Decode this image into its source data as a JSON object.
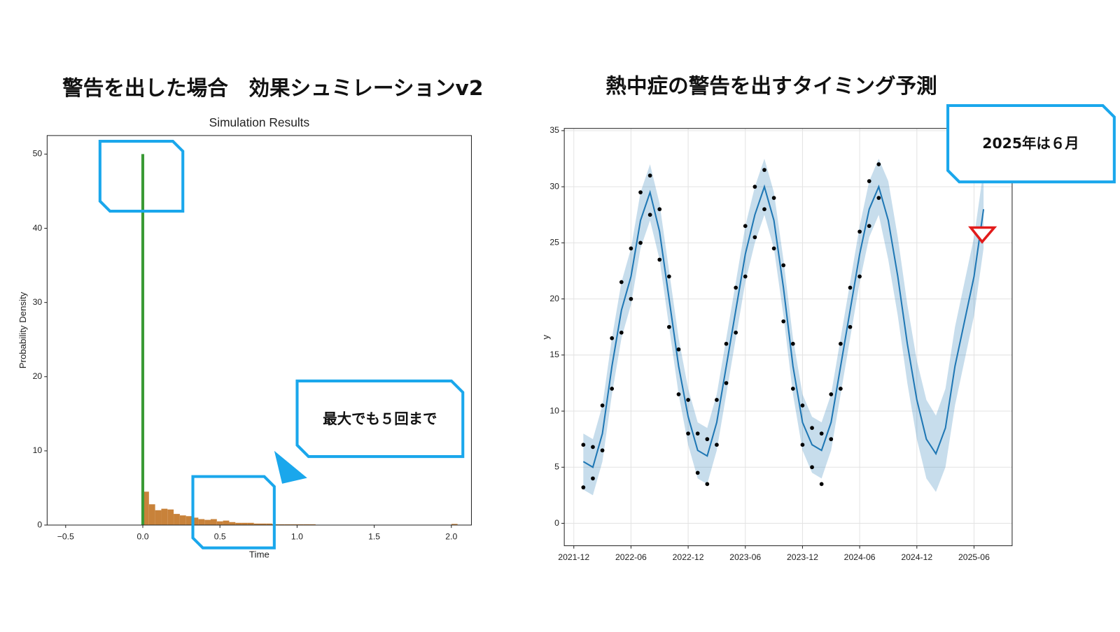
{
  "slide": {
    "titles": [
      "警告を出した場合　効果シュミレーションv2",
      "熱中症の警告を出すタイミング予測"
    ],
    "callouts": [
      "最大でも５回まで",
      "2025年は６月"
    ]
  },
  "chart_data": [
    {
      "type": "histogram",
      "title": "Simulation Results",
      "x_label": "Time",
      "y_label": "Probability Density",
      "bins": [
        0,
        0.04,
        0.08,
        0.12,
        0.16,
        0.2,
        0.24,
        0.28,
        0.32,
        0.36,
        0.4,
        0.44,
        0.48,
        0.52,
        0.56,
        0.6,
        0.64,
        0.68,
        0.72,
        0.76,
        0.8,
        0.84,
        0.88,
        0.92,
        0.96,
        1,
        1.04,
        1.08,
        1.12,
        1.16,
        1.2,
        1.24,
        1.28,
        1.32,
        1.36,
        1.4,
        1.44,
        1.48,
        1.52,
        1.56,
        1.6,
        1.64,
        1.68,
        1.72,
        1.76,
        1.8,
        1.84,
        1.88,
        1.92,
        1.96,
        2,
        2.04
      ],
      "values": [
        4.5,
        2.8,
        2.0,
        2.2,
        2.1,
        1.5,
        1.3,
        1.2,
        1.0,
        0.8,
        0.7,
        0.8,
        0.5,
        0.6,
        0.4,
        0.3,
        0.3,
        0.3,
        0.2,
        0.2,
        0.2,
        0.1,
        0.1,
        0.1,
        0.1,
        0.1,
        0.1,
        0.1,
        0,
        0,
        0,
        0,
        0,
        0,
        0,
        0,
        0,
        0,
        0,
        0,
        0,
        0,
        0,
        0,
        0,
        0,
        0,
        0,
        0,
        0,
        0.15
      ],
      "color": "#c8823a",
      "marker_line": {
        "x": 0,
        "y": 50,
        "color": "#3a9a35"
      },
      "xlim": [
        -0.62,
        2.13
      ],
      "ylim": [
        0,
        52.5
      ],
      "xticks": [
        {
          "value": -0.5,
          "label": "−0.5"
        },
        {
          "value": 0,
          "label": "0.0"
        },
        0.5,
        {
          "value": 1,
          "label": "1.0"
        },
        1.5,
        {
          "value": 2,
          "label": "2.0"
        }
      ],
      "yticks": [
        0,
        10,
        20,
        30,
        40,
        50
      ],
      "grid": false
    },
    {
      "type": "forecast",
      "y_label": "y",
      "x": [
        "2022-01",
        "2022-02",
        "2022-03",
        "2022-04",
        "2022-05",
        "2022-06",
        "2022-07",
        "2022-08",
        "2022-09",
        "2022-10",
        "2022-11",
        "2022-12",
        "2023-01",
        "2023-02",
        "2023-03",
        "2023-04",
        "2023-05",
        "2023-06",
        "2023-07",
        "2023-08",
        "2023-09",
        "2023-10",
        "2023-11",
        "2023-12",
        "2024-01",
        "2024-02",
        "2024-03",
        "2024-04",
        "2024-05",
        "2024-06",
        "2024-07",
        "2024-08",
        "2024-09",
        "2024-10",
        "2024-11",
        "2024-12",
        "2025-01",
        "2025-02",
        "2025-03",
        "2025-04",
        "2025-05",
        "2025-06",
        "2025-07"
      ],
      "values": [
        5.5,
        5.0,
        8,
        14,
        19,
        22,
        27,
        29.5,
        26,
        20,
        14,
        9.5,
        6.5,
        6.0,
        9,
        14,
        19,
        24,
        27.5,
        30,
        27,
        21,
        14,
        9,
        7,
        6.5,
        9,
        14,
        19,
        24,
        28,
        30,
        27,
        22,
        16,
        11,
        7.5,
        6.2,
        8.5,
        14,
        18,
        22,
        28
      ],
      "lower": [
        3,
        2.5,
        5.5,
        11.5,
        16.5,
        19.5,
        24.5,
        27,
        23.5,
        17.5,
        11.5,
        7,
        4,
        3.5,
        6.5,
        11.5,
        16.5,
        21.5,
        25,
        27.5,
        24.5,
        18.5,
        11.5,
        6.5,
        4.5,
        4,
        6.5,
        11.5,
        16.5,
        21.5,
        25.5,
        27.5,
        23.5,
        18.5,
        12.5,
        7.5,
        4,
        2.8,
        5,
        10.5,
        14.5,
        18.5,
        24.5
      ],
      "upper": [
        8,
        7.5,
        10.5,
        16.5,
        21.5,
        24.5,
        29.5,
        32,
        28.5,
        22.5,
        16.5,
        12,
        9,
        8.5,
        11.5,
        16.5,
        21.5,
        26.5,
        30,
        32.5,
        29.5,
        23.5,
        16.5,
        11.5,
        9.5,
        9,
        11.5,
        16.5,
        21.5,
        26.5,
        30.5,
        32.5,
        30.5,
        25.5,
        19.5,
        14.5,
        11,
        9.6,
        12,
        17.5,
        21.5,
        25.5,
        31.5
      ],
      "color": "#1f77b4",
      "points": {
        "x": [
          "2022-01",
          "2022-01",
          "2022-02",
          "2022-02",
          "2022-03",
          "2022-03",
          "2022-04",
          "2022-04",
          "2022-05",
          "2022-05",
          "2022-06",
          "2022-06",
          "2022-07",
          "2022-07",
          "2022-08",
          "2022-08",
          "2022-09",
          "2022-09",
          "2022-10",
          "2022-10",
          "2022-11",
          "2022-11",
          "2022-12",
          "2022-12",
          "2023-01",
          "2023-01",
          "2023-02",
          "2023-02",
          "2023-03",
          "2023-03",
          "2023-04",
          "2023-04",
          "2023-05",
          "2023-05",
          "2023-06",
          "2023-06",
          "2023-07",
          "2023-07",
          "2023-08",
          "2023-08",
          "2023-09",
          "2023-09",
          "2023-10",
          "2023-10",
          "2023-11",
          "2023-11",
          "2023-12",
          "2023-12",
          "2024-01",
          "2024-01",
          "2024-02",
          "2024-02",
          "2024-03",
          "2024-03",
          "2024-04",
          "2024-04",
          "2024-05",
          "2024-05",
          "2024-06",
          "2024-06",
          "2024-07",
          "2024-07",
          "2024-08",
          "2024-08"
        ],
        "y": [
          3.2,
          7.0,
          6.8,
          4.0,
          10.5,
          6.5,
          12.0,
          16.5,
          21.5,
          17.0,
          20.0,
          24.5,
          29.5,
          25.0,
          31.0,
          27.5,
          28.0,
          23.5,
          17.5,
          22.0,
          15.5,
          11.5,
          8.0,
          11.0,
          4.5,
          8.0,
          7.5,
          3.5,
          11.0,
          7.0,
          16.0,
          12.5,
          17.0,
          21.0,
          26.5,
          22.0,
          30.0,
          25.5,
          31.5,
          28.0,
          24.5,
          29.0,
          23.0,
          18.0,
          12.0,
          16.0,
          10.5,
          7.0,
          5.0,
          8.5,
          3.5,
          8.0,
          11.5,
          7.5,
          16.0,
          12.0,
          21.0,
          17.5,
          22.0,
          26.0,
          30.5,
          26.5,
          32.0,
          29.0
        ],
        "color": "#000000"
      },
      "xlim": [
        "2021-11",
        "2025-10"
      ],
      "ylim": [
        -2,
        35.2
      ],
      "xticks": [
        "2021-12",
        "2022-06",
        "2022-12",
        "2023-06",
        "2023-12",
        "2024-06",
        "2024-12",
        "2025-06"
      ],
      "yticks": [
        0,
        5,
        10,
        15,
        20,
        25,
        30,
        35
      ],
      "grid": true
    }
  ]
}
